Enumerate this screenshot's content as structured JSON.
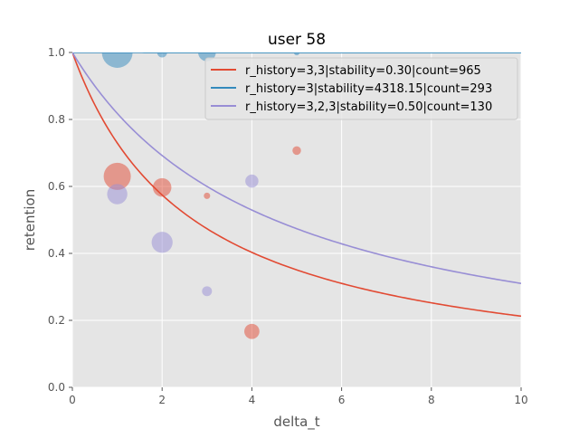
{
  "chart_data": {
    "type": "scatter",
    "title": "user 58",
    "xlabel": "delta_t",
    "ylabel": "retention",
    "xlim": [
      0,
      10
    ],
    "ylim": [
      0,
      1
    ],
    "x_ticks": [
      "0",
      "2",
      "4",
      "6",
      "8",
      "10"
    ],
    "y_ticks": [
      "0.0",
      "0.2",
      "0.4",
      "0.6",
      "0.8",
      "1.0"
    ],
    "grid": true,
    "legend_position": "top-right",
    "series": [
      {
        "name": "r_history=3,3|stability=0.30|count=965",
        "color": "#E24A33",
        "curve": {
          "type": "power_decay",
          "stability": 0.3
        },
        "points": [
          {
            "x": 1,
            "y": 0.63,
            "count": 900
          },
          {
            "x": 2,
            "y": 0.597,
            "count": 420
          },
          {
            "x": 3,
            "y": 0.572,
            "count": 50
          },
          {
            "x": 4,
            "y": 0.167,
            "count": 280
          },
          {
            "x": 5,
            "y": 0.707,
            "count": 90
          }
        ]
      },
      {
        "name": "r_history=3|stability=4318.15|count=293",
        "color": "#348ABD",
        "curve": {
          "type": "power_decay",
          "stability": 4318.15
        },
        "points": [
          {
            "x": 1,
            "y": 1.0,
            "count": 1150
          },
          {
            "x": 2,
            "y": 1.0,
            "count": 120
          },
          {
            "x": 3,
            "y": 1.0,
            "count": 380
          },
          {
            "x": 5,
            "y": 1.0,
            "count": 40
          }
        ]
      },
      {
        "name": "r_history=3,2,3|stability=0.50|count=130",
        "color": "#988ED5",
        "curve": {
          "type": "power_decay",
          "stability": 0.5
        },
        "points": [
          {
            "x": 1,
            "y": 0.577,
            "count": 500
          },
          {
            "x": 2,
            "y": 0.433,
            "count": 540
          },
          {
            "x": 3,
            "y": 0.287,
            "count": 120
          },
          {
            "x": 4,
            "y": 0.616,
            "count": 210
          }
        ]
      }
    ]
  }
}
